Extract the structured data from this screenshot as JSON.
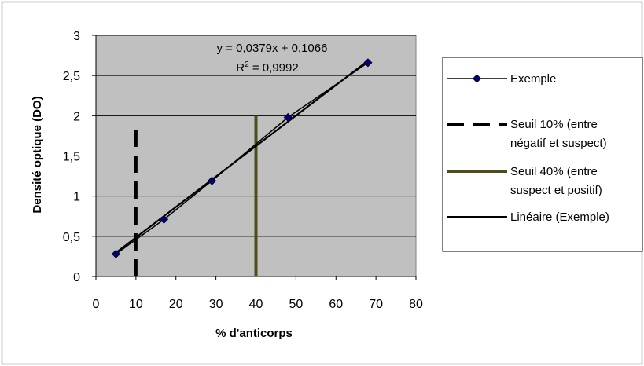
{
  "chart_data": {
    "type": "scatter",
    "title": "",
    "xlabel": "% d'anticorps",
    "ylabel": "Densité optique (DO)",
    "xlim": [
      0,
      80
    ],
    "ylim": [
      0,
      3
    ],
    "x_ticks": [
      0,
      10,
      20,
      30,
      40,
      50,
      60,
      70,
      80
    ],
    "y_ticks": [
      0,
      0.5,
      1,
      1.5,
      2,
      2.5,
      3
    ],
    "x_tick_labels": [
      "0",
      "10",
      "20",
      "30",
      "40",
      "50",
      "60",
      "70",
      "80"
    ],
    "y_tick_labels": [
      "0",
      "0,5",
      "1",
      "1,5",
      "2",
      "2,5",
      "3"
    ],
    "grid": "horizontal",
    "plot_background": "#c0c0c0",
    "legend_position": "right",
    "series": [
      {
        "name": "Exemple",
        "kind": "line-markers",
        "color": "#000080",
        "x": [
          5,
          17,
          29,
          48,
          68
        ],
        "y": [
          0.28,
          0.71,
          1.19,
          1.98,
          2.66
        ]
      },
      {
        "name": "Seuil 10% (entre négatif et suspect)",
        "legend_lines": [
          "Seuil 10% (entre",
          "négatif et suspect)"
        ],
        "kind": "vertical-dashed",
        "color": "#000000",
        "x": [
          10,
          10
        ],
        "y": [
          0,
          1.85
        ]
      },
      {
        "name": "Seuil 40% (entre suspect et positif)",
        "legend_lines": [
          "Seuil 40% (entre",
          "suspect et positif)"
        ],
        "kind": "vertical-solid",
        "color": "#4d4d1a",
        "x": [
          40,
          40
        ],
        "y": [
          0,
          2.0
        ]
      },
      {
        "name": "Linéaire (Exemple)",
        "kind": "trendline",
        "color": "#000000",
        "slope": 0.0379,
        "intercept": 0.1066,
        "x_range": [
          5,
          68
        ]
      }
    ],
    "annotations": {
      "equation": "y = 0,0379x + 0,1066",
      "r_squared_prefix": "R",
      "r_squared_sup": "2",
      "r_squared_value": " = 0,9992"
    }
  }
}
